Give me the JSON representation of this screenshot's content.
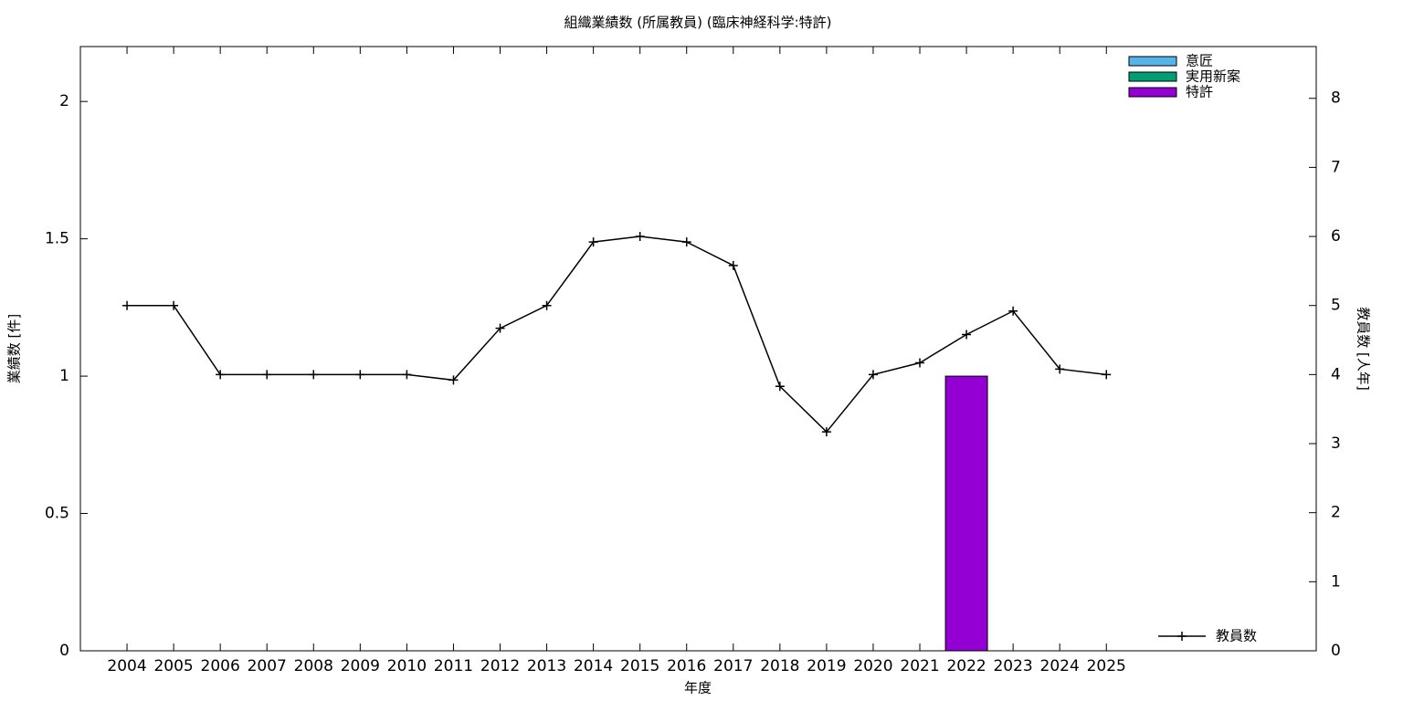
{
  "chart_data": {
    "type": "bar_line",
    "title": "組織業績数 (所属教員) (臨床神経科学:特許)",
    "xlabel": "年度",
    "ylabel": "業績数 [件]",
    "y2label": "教員数 [人年]",
    "categories": [
      "2004",
      "2005",
      "2006",
      "2007",
      "2008",
      "2009",
      "2010",
      "2011",
      "2012",
      "2013",
      "2014",
      "2015",
      "2016",
      "2017",
      "2018",
      "2019",
      "2020",
      "2021",
      "2022",
      "2023",
      "2024",
      "2025"
    ],
    "ylim": [
      0,
      2.2
    ],
    "yticks": [
      0,
      0.5,
      1,
      1.5,
      2
    ],
    "y2lim": [
      0,
      8.75
    ],
    "y2ticks": [
      0,
      1,
      2,
      3,
      4,
      5,
      6,
      7,
      8
    ],
    "series": [
      {
        "name": "意匠",
        "type": "bar",
        "color": "#56b4e9",
        "values": [
          0,
          0,
          0,
          0,
          0,
          0,
          0,
          0,
          0,
          0,
          0,
          0,
          0,
          0,
          0,
          0,
          0,
          0,
          0,
          0,
          0,
          0
        ]
      },
      {
        "name": "実用新案",
        "type": "bar",
        "color": "#009e73",
        "values": [
          0,
          0,
          0,
          0,
          0,
          0,
          0,
          0,
          0,
          0,
          0,
          0,
          0,
          0,
          0,
          0,
          0,
          0,
          0,
          0,
          0,
          0
        ]
      },
      {
        "name": "特許",
        "type": "bar",
        "color": "#9400d3",
        "values": [
          0,
          0,
          0,
          0,
          0,
          0,
          0,
          0,
          0,
          0,
          0,
          0,
          0,
          0,
          0,
          0,
          0,
          0,
          1,
          0,
          0,
          0
        ]
      },
      {
        "name": "教員数",
        "type": "line",
        "axis": "y2",
        "color": "#000000",
        "values": [
          5,
          5,
          4,
          4,
          4,
          4,
          4,
          3.92,
          4.67,
          5,
          5.92,
          6,
          5.92,
          5.58,
          3.83,
          3.17,
          4,
          4.17,
          4.58,
          4.92,
          4.08,
          4
        ]
      }
    ]
  }
}
